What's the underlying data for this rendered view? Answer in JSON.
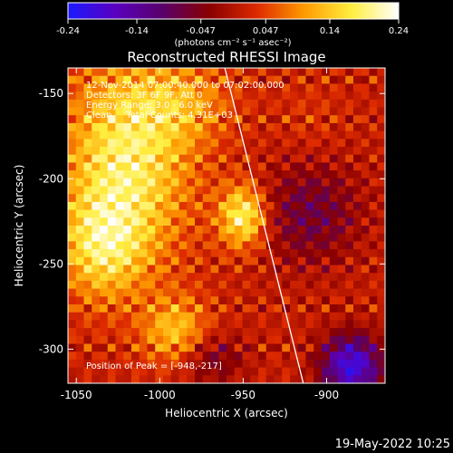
{
  "chart_data": {
    "type": "heatmap",
    "title": "Reconstructed RHESSI Image",
    "xlabel": "Heliocentric X (arcsec)",
    "ylabel": "Heliocentric Y (arcsec)",
    "xlim": [
      -1055,
      -865
    ],
    "ylim": [
      -320,
      -135
    ],
    "x_ticks": [
      "-1050",
      "-1000",
      "-950",
      "-900"
    ],
    "x_tick_values": [
      -1050,
      -1000,
      -950,
      -900
    ],
    "y_ticks": [
      "-150",
      "-200",
      "-250",
      "-300"
    ],
    "y_tick_values": [
      -150,
      -200,
      -250,
      -300
    ],
    "colorbar": {
      "min": -0.24,
      "max": 0.24,
      "tick_labels": [
        "-0.24",
        "-0.14",
        "-0.047",
        "0.047",
        "0.14",
        "0.24"
      ],
      "tick_values": [
        -0.24,
        -0.14,
        -0.047,
        0.047,
        0.14,
        0.24
      ],
      "unit_label": "(photons cm⁻² s⁻¹ asec⁻²)",
      "colors": [
        "#1a1aff",
        "#5a00c0",
        "#5a006a",
        "#8a0000",
        "#dd2a00",
        "#ff9a00",
        "#ffee40",
        "#ffffff"
      ]
    },
    "info_lines": [
      "12-Nov-2014 07:00:40.000 to 07:02:00.000",
      "Detectors: 3F 6F 9F, Att 0",
      "Energy Range: 3.0 - 6.0 keV",
      "Clean     Total Counts: 4.31E+03"
    ],
    "peak": {
      "label": "Position of Peak = [-948,-217]",
      "x": -948,
      "y": -217
    },
    "limb_line": {
      "x1": -961,
      "y1": -135,
      "x2": -914,
      "y2": -320
    },
    "hot_regions": [
      {
        "x": -1020,
        "y": -190,
        "sx": 38,
        "sy": 60,
        "amp": 0.17
      },
      {
        "x": -1035,
        "y": -240,
        "sx": 25,
        "sy": 30,
        "amp": 0.12
      },
      {
        "x": -950,
        "y": -222,
        "sx": 14,
        "sy": 18,
        "amp": 0.18
      },
      {
        "x": -985,
        "y": -155,
        "sx": 30,
        "sy": 25,
        "amp": 0.07
      },
      {
        "x": -990,
        "y": -290,
        "sx": 20,
        "sy": 20,
        "amp": 0.12
      },
      {
        "x": -910,
        "y": -165,
        "sx": 20,
        "sy": 25,
        "amp": 0.02
      },
      {
        "x": -885,
        "y": -310,
        "sx": 18,
        "sy": 18,
        "amp": -0.22
      },
      {
        "x": -910,
        "y": -220,
        "sx": 30,
        "sy": 30,
        "amp": -0.09
      },
      {
        "x": -970,
        "y": -305,
        "sx": 20,
        "sy": 15,
        "amp": -0.08
      }
    ]
  },
  "footer": {
    "timestamp": "19-May-2022 10:25"
  }
}
